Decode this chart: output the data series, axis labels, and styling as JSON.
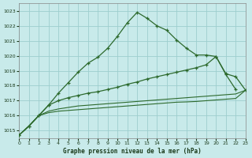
{
  "title": "Graphe pression niveau de la mer (hPa)",
  "bg_color": "#c8eaea",
  "grid_color": "#9ecece",
  "line_color": "#2d6a2d",
  "line_color2": "#3a7a3a",
  "xlim": [
    0,
    23
  ],
  "ylim": [
    1014.5,
    1023.5
  ],
  "yticks": [
    1015,
    1016,
    1017,
    1018,
    1019,
    1020,
    1021,
    1022,
    1023
  ],
  "xticks": [
    0,
    1,
    2,
    3,
    4,
    5,
    6,
    7,
    8,
    9,
    10,
    11,
    12,
    13,
    14,
    15,
    16,
    17,
    18,
    19,
    20,
    21,
    22,
    23
  ],
  "line1": [
    1014.7,
    1015.3,
    1016.0,
    1016.7,
    1017.5,
    1018.2,
    1018.9,
    1019.5,
    1019.9,
    1020.5,
    1021.3,
    1022.2,
    1022.9,
    1022.5,
    1022.0,
    1021.7,
    1021.05,
    1020.5,
    1020.05,
    1020.05,
    1019.95,
    1018.75,
    1017.75,
    null
  ],
  "line2": [
    1014.7,
    1015.3,
    1016.0,
    1016.7,
    1017.0,
    1017.2,
    1017.35,
    1017.5,
    1017.6,
    1017.75,
    1017.9,
    1018.1,
    1018.25,
    1018.45,
    1018.6,
    1018.75,
    1018.9,
    1019.05,
    1019.2,
    1019.4,
    1019.95,
    1018.8,
    1018.6,
    1017.7
  ],
  "line3": [
    1014.7,
    1015.3,
    1016.0,
    1016.3,
    1016.45,
    1016.55,
    1016.65,
    1016.7,
    1016.75,
    1016.8,
    1016.85,
    1016.9,
    1016.95,
    1017.0,
    1017.05,
    1017.1,
    1017.15,
    1017.2,
    1017.25,
    1017.3,
    1017.35,
    1017.4,
    1017.45,
    1017.7
  ],
  "line4": [
    1014.7,
    1015.3,
    1016.0,
    1016.2,
    1016.3,
    1016.35,
    1016.4,
    1016.45,
    1016.5,
    1016.55,
    1016.6,
    1016.65,
    1016.7,
    1016.75,
    1016.8,
    1016.85,
    1016.9,
    1016.92,
    1016.95,
    1017.0,
    1017.05,
    1017.1,
    1017.15,
    1017.7
  ]
}
